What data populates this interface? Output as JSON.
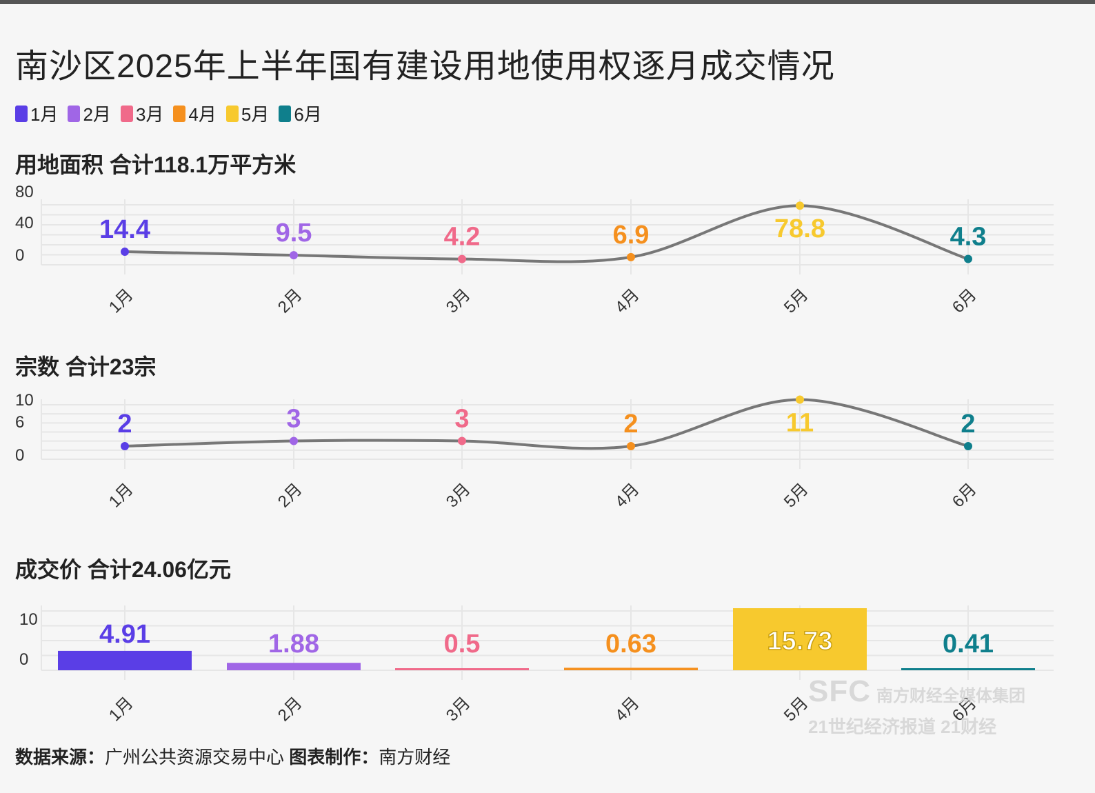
{
  "title": "南沙区2025年上半年国有建设用地使用权逐月成交情况",
  "legend": [
    {
      "label": "1月",
      "color": "#5a3ee6"
    },
    {
      "label": "2月",
      "color": "#a066e6"
    },
    {
      "label": "3月",
      "color": "#f06a8a"
    },
    {
      "label": "4月",
      "color": "#f5901e"
    },
    {
      "label": "5月",
      "color": "#f7c92e"
    },
    {
      "label": "6月",
      "color": "#0f7f8c"
    }
  ],
  "footer": {
    "source_label": "数据来源：",
    "source_value": "广州公共资源交易中心",
    "maker_label": "图表制作：",
    "maker_value": "南方财经"
  },
  "watermark": {
    "logo": "SFC",
    "name": "南方财经全媒体集团",
    "line2": "21世纪经济报道 21财经"
  },
  "chart_data": [
    {
      "type": "line",
      "title": "用地面积 合计118.1万平方米",
      "categories": [
        "1月",
        "2月",
        "3月",
        "4月",
        "5月",
        "6月"
      ],
      "values": [
        14.4,
        9.5,
        4.2,
        6.9,
        78.8,
        4.3
      ],
      "labels": [
        "14.4",
        "9.5",
        "4.2",
        "6.9",
        "78.8",
        "4.3"
      ],
      "yticks": [
        "80",
        "40",
        "0"
      ],
      "ylim": [
        0,
        80
      ],
      "grid": true,
      "line_color": "#777777"
    },
    {
      "type": "line",
      "title": "宗数 合计23宗",
      "categories": [
        "1月",
        "2月",
        "3月",
        "4月",
        "5月",
        "6月"
      ],
      "values": [
        2,
        3,
        3,
        2,
        11,
        2
      ],
      "labels": [
        "2",
        "3",
        "3",
        "2",
        "11",
        "2"
      ],
      "yticks": [
        "10",
        "6",
        "0"
      ],
      "ylim": [
        0,
        10
      ],
      "grid": true,
      "line_color": "#777777"
    },
    {
      "type": "bar",
      "title": "成交价 合计24.06亿元",
      "categories": [
        "1月",
        "2月",
        "3月",
        "4月",
        "5月",
        "6月"
      ],
      "values": [
        4.91,
        1.88,
        0.5,
        0.63,
        15.73,
        0.41
      ],
      "labels": [
        "4.91",
        "1.88",
        "0.5",
        "0.63",
        "15.73",
        "0.41"
      ],
      "yticks": [
        "10",
        "0"
      ],
      "ylim": [
        0,
        15.73
      ],
      "grid": true
    }
  ]
}
